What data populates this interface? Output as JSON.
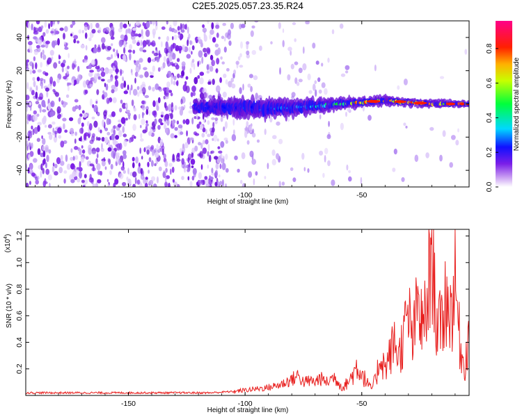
{
  "page": {
    "title": "C2E5.2025.057.23.35.R24"
  },
  "chart_data": [
    {
      "type": "heatmap",
      "title": "C2E5.2025.057.23.35.R24",
      "xlabel": "Height of straight line (km)",
      "ylabel": "Frequency (Hz)",
      "xlim": [
        -194,
        -4
      ],
      "ylim": [
        -50,
        50
      ],
      "x_ticks": [
        -150,
        -100,
        -50
      ],
      "x_tick_labels": [
        "-150",
        "-100",
        "-50"
      ],
      "y_ticks": [
        40,
        20,
        0,
        -20,
        -40
      ],
      "y_tick_labels": [
        "40",
        "20",
        "0",
        "-20",
        "-40"
      ],
      "grid": false,
      "colorbar": {
        "label": "Normalized spectral amplitude",
        "range": [
          0,
          0.96
        ],
        "ticks": [
          0.0,
          0.2,
          0.4,
          0.6,
          0.8
        ],
        "tick_labels": [
          "0.0",
          "0.2",
          "0.4",
          "0.6",
          "0.8"
        ],
        "colormap": [
          "#ffffff",
          "#8a2be2",
          "#0000ff",
          "#00ffff",
          "#00ff00",
          "#ffff00",
          "#ff8000",
          "#ff0000",
          "#ff0080"
        ]
      },
      "features": {
        "background_noise": {
          "x_range": [
            -194,
            -105
          ],
          "freq_range": [
            -50,
            50
          ],
          "amplitude": 0.05
        },
        "signal_band": [
          {
            "x": -120,
            "freq_center": -2,
            "half_width": 4,
            "amplitude": 0.2
          },
          {
            "x": -105,
            "freq_center": -2,
            "half_width": 6,
            "amplitude": 0.25
          },
          {
            "x": -90,
            "freq_center": -3,
            "half_width": 6,
            "amplitude": 0.3
          },
          {
            "x": -75,
            "freq_center": -2,
            "half_width": 5,
            "amplitude": 0.35
          },
          {
            "x": -60,
            "freq_center": 0,
            "half_width": 4,
            "amplitude": 0.45
          },
          {
            "x": -50,
            "freq_center": 1,
            "half_width": 3,
            "amplitude": 0.85
          },
          {
            "x": -40,
            "freq_center": 2,
            "half_width": 3,
            "amplitude": 0.8
          },
          {
            "x": -30,
            "freq_center": 1,
            "half_width": 2.5,
            "amplitude": 0.85
          },
          {
            "x": -20,
            "freq_center": 0,
            "half_width": 2.5,
            "amplitude": 0.7
          },
          {
            "x": -8,
            "freq_center": 0,
            "half_width": 2,
            "amplitude": 0.85
          }
        ]
      }
    },
    {
      "type": "line",
      "xlabel": "Height of straight line (km)",
      "ylabel": "SNR (10 * v/v)",
      "y_multiplier": "(x10",
      "y_multiplier_exp": "4",
      "y_multiplier_close": ")",
      "xlim": [
        -194,
        -4
      ],
      "ylim": [
        0,
        1.25
      ],
      "x_ticks": [
        -150,
        -100,
        -50
      ],
      "x_tick_labels": [
        "-150",
        "-100",
        "-50"
      ],
      "y_ticks": [
        1.2,
        1.0,
        0.8,
        0.6,
        0.4,
        0.2
      ],
      "y_tick_labels": [
        "1.2",
        "1.0",
        "0.8",
        "0.6",
        "0.4",
        "0.2"
      ],
      "grid": false,
      "series": [
        {
          "color": "#e8201f",
          "x": [
            -194,
            -180,
            -160,
            -140,
            -125,
            -115,
            -105,
            -100,
            -95,
            -90,
            -85,
            -80,
            -77,
            -75,
            -72,
            -70,
            -68,
            -65,
            -62,
            -60,
            -58,
            -55,
            -52,
            -50,
            -48,
            -46,
            -44,
            -42,
            -40,
            -38,
            -36,
            -34,
            -32,
            -30,
            -28,
            -26,
            -24,
            -22,
            -20,
            -18,
            -16,
            -14,
            -12,
            -10,
            -8,
            -6,
            -4
          ],
          "y": [
            0.02,
            0.02,
            0.02,
            0.02,
            0.02,
            0.02,
            0.03,
            0.04,
            0.05,
            0.06,
            0.08,
            0.12,
            0.15,
            0.1,
            0.11,
            0.1,
            0.13,
            0.1,
            0.14,
            0.1,
            0.06,
            0.12,
            0.22,
            0.17,
            0.1,
            0.05,
            0.12,
            0.3,
            0.2,
            0.3,
            0.4,
            0.3,
            0.45,
            0.6,
            0.4,
            0.7,
            0.5,
            0.65,
            1.24,
            0.55,
            0.5,
            0.75,
            0.6,
            0.88,
            0.4,
            0.2,
            0.48
          ]
        }
      ]
    }
  ]
}
